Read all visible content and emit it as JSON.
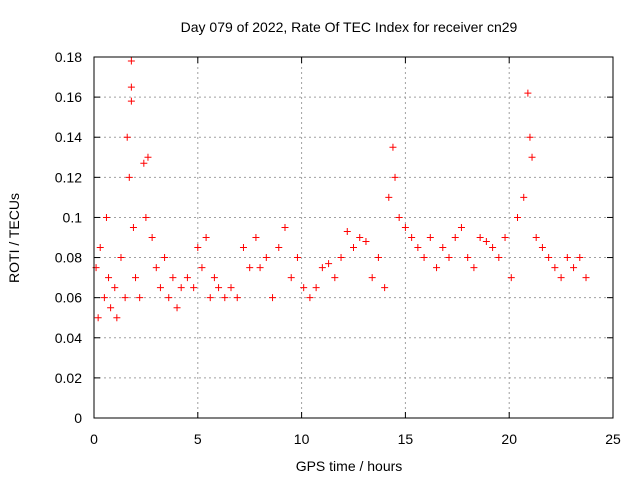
{
  "chart_data": {
    "type": "scatter",
    "title": "Day 079 of 2022, Rate Of TEC Index for receiver cn29",
    "xlabel": "GPS time / hours",
    "ylabel": "ROTI / TECUs",
    "xlim": [
      0,
      25
    ],
    "ylim": [
      0,
      0.18
    ],
    "x_ticks": [
      0,
      5,
      10,
      15,
      20,
      25
    ],
    "x_tick_labels": [
      "0",
      "5",
      "10",
      "15",
      "20",
      "25"
    ],
    "y_ticks": [
      0,
      0.02,
      0.04,
      0.06,
      0.08,
      0.1,
      0.12,
      0.14,
      0.16,
      0.18
    ],
    "y_tick_labels": [
      "0",
      "0.02",
      "0.04",
      "0.06",
      "0.08",
      "0.1",
      "0.12",
      "0.14",
      "0.16",
      "0.18"
    ],
    "grid": true,
    "legend": "none",
    "marker": "+",
    "color": "#ff0000",
    "series": [
      {
        "x": [
          0.1,
          0.2,
          0.3,
          0.5,
          0.6,
          0.7,
          0.8,
          1.0,
          1.1,
          1.3,
          1.5,
          1.6,
          1.7,
          1.8,
          1.8,
          1.8,
          1.9,
          2.0,
          2.2,
          2.4,
          2.5,
          2.6,
          2.8,
          3.0,
          3.2,
          3.4,
          3.6,
          3.8,
          4.0,
          4.2,
          4.5,
          4.8,
          5.0,
          5.2,
          5.4,
          5.6,
          5.8,
          6.0,
          6.3,
          6.6,
          6.9,
          7.2,
          7.5,
          7.8,
          8.0,
          8.3,
          8.6,
          8.9,
          9.2,
          9.5,
          9.8,
          10.1,
          10.4,
          10.7,
          11.0,
          11.3,
          11.6,
          11.9,
          12.2,
          12.5,
          12.8,
          13.1,
          13.4,
          13.7,
          14.0,
          14.2,
          14.4,
          14.5,
          14.7,
          15.0,
          15.3,
          15.6,
          15.9,
          16.2,
          16.5,
          16.8,
          17.1,
          17.4,
          17.7,
          18.0,
          18.3,
          18.6,
          18.9,
          19.2,
          19.5,
          19.8,
          20.1,
          20.4,
          20.7,
          20.9,
          21.0,
          21.1,
          21.3,
          21.6,
          21.9,
          22.2,
          22.5,
          22.8,
          23.1,
          23.4,
          23.7
        ],
        "y": [
          0.075,
          0.05,
          0.085,
          0.06,
          0.1,
          0.07,
          0.055,
          0.065,
          0.05,
          0.08,
          0.06,
          0.14,
          0.12,
          0.178,
          0.165,
          0.158,
          0.095,
          0.07,
          0.06,
          0.127,
          0.1,
          0.13,
          0.09,
          0.075,
          0.065,
          0.08,
          0.06,
          0.07,
          0.055,
          0.065,
          0.07,
          0.065,
          0.085,
          0.075,
          0.09,
          0.06,
          0.07,
          0.065,
          0.06,
          0.065,
          0.06,
          0.085,
          0.075,
          0.09,
          0.075,
          0.08,
          0.06,
          0.085,
          0.095,
          0.07,
          0.08,
          0.065,
          0.06,
          0.065,
          0.075,
          0.077,
          0.07,
          0.08,
          0.093,
          0.085,
          0.09,
          0.088,
          0.07,
          0.08,
          0.065,
          0.11,
          0.135,
          0.12,
          0.1,
          0.095,
          0.09,
          0.085,
          0.08,
          0.09,
          0.075,
          0.085,
          0.08,
          0.09,
          0.095,
          0.08,
          0.075,
          0.09,
          0.088,
          0.085,
          0.08,
          0.09,
          0.07,
          0.1,
          0.11,
          0.162,
          0.14,
          0.13,
          0.09,
          0.085,
          0.08,
          0.075,
          0.07,
          0.08,
          0.075,
          0.08,
          0.07
        ]
      }
    ]
  }
}
